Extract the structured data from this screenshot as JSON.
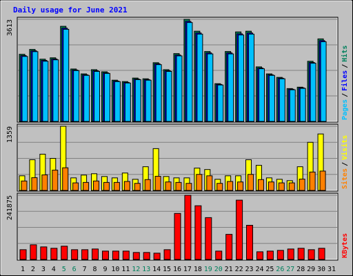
{
  "chart_data": {
    "type": "bar",
    "title": "Daily usage for June 2021",
    "legend_separator": "/",
    "categories": [
      "1",
      "2",
      "3",
      "4",
      "5",
      "6",
      "7",
      "8",
      "9",
      "10",
      "11",
      "12",
      "13",
      "14",
      "15",
      "16",
      "17",
      "18",
      "19",
      "20",
      "21",
      "22",
      "23",
      "24",
      "25",
      "26",
      "27",
      "28",
      "29",
      "30",
      "31"
    ],
    "tick_label_colors": [
      "#000000",
      "#000000",
      "#000000",
      "#000000",
      "#00805c",
      "#00805c",
      "#000000",
      "#000000",
      "#000000",
      "#000000",
      "#000000",
      "#00805c",
      "#00805c",
      "#000000",
      "#000000",
      "#000000",
      "#000000",
      "#000000",
      "#00805c",
      "#00805c",
      "#000000",
      "#000000",
      "#000000",
      "#000000",
      "#000000",
      "#00805c",
      "#00805c",
      "#000000",
      "#000000",
      "#000000",
      "#000000"
    ],
    "panels": [
      {
        "ylim": [
          0,
          3613
        ],
        "yticks": [
          3613
        ],
        "series": [
          {
            "name": "Hits",
            "color": "#00805c",
            "values": [
              2376,
              2549,
              2203,
              2252,
              3366,
              1856,
              1683,
              1832,
              1757,
              1460,
              1411,
              1535,
              1510,
              2079,
              1832,
              2401,
              3613,
              3193,
              2475,
              1337,
              2475,
              3168,
              3193,
              1931,
              1683,
              1559,
              1163,
              1213,
              2129,
              2921,
              null
            ]
          },
          {
            "name": "Files",
            "color": "#0000ff",
            "values": [
              2330,
              2500,
              2160,
              2210,
              3300,
              1820,
              1650,
              1795,
              1720,
              1430,
              1380,
              1500,
              1480,
              2040,
              1795,
              2350,
              3540,
              3130,
              2425,
              1310,
              2425,
              3100,
              3130,
              1890,
              1650,
              1530,
              1140,
              1190,
              2085,
              2860,
              null
            ]
          },
          {
            "name": "Pages",
            "color": "#00c0ff",
            "values": [
              2300,
              2470,
              2130,
              2180,
              3260,
              1800,
              1630,
              1770,
              1700,
              1410,
              1360,
              1480,
              1460,
              2010,
              1770,
              2320,
              3500,
              3090,
              2390,
              1290,
              2390,
              3060,
              3090,
              1865,
              1630,
              1510,
              1120,
              1170,
              2060,
              2820,
              null
            ]
          }
        ]
      },
      {
        "ylim": [
          0,
          1359
        ],
        "yticks": [
          1359
        ],
        "series": [
          {
            "name": "Visits",
            "color": "#ffff00",
            "values": [
              310,
              650,
              768,
              679,
              1359,
              266,
              325,
              354,
              295,
              266,
              369,
              236,
              502,
              886,
              295,
              266,
              266,
              473,
              443,
              236,
              310,
              310,
              650,
              532,
              266,
              236,
              207,
              502,
              1019,
              1196,
              null
            ]
          },
          {
            "name": "Sites",
            "color": "#ff8000",
            "values": [
              200,
              270,
              330,
              430,
              480,
              160,
              170,
              200,
              170,
              170,
              190,
              150,
              230,
              300,
              180,
              170,
              150,
              340,
              310,
              150,
              190,
              180,
              340,
              230,
              180,
              160,
              160,
              240,
              390,
              410,
              null
            ]
          }
        ]
      },
      {
        "ylim": [
          0,
          241875
        ],
        "yticks": [
          241875
        ],
        "series": [
          {
            "name": "KBytes",
            "color": "#ff0000",
            "values": [
              36800,
              55200,
              47300,
              42100,
              50000,
              36800,
              36800,
              39400,
              31500,
              31500,
              31500,
              26300,
              26300,
              23700,
              36800,
              173500,
              241875,
              202400,
              157700,
              31500,
              94600,
              223500,
              128800,
              28900,
              31500,
              34200,
              39400,
              42100,
              36800,
              42100,
              null
            ]
          }
        ]
      }
    ]
  }
}
